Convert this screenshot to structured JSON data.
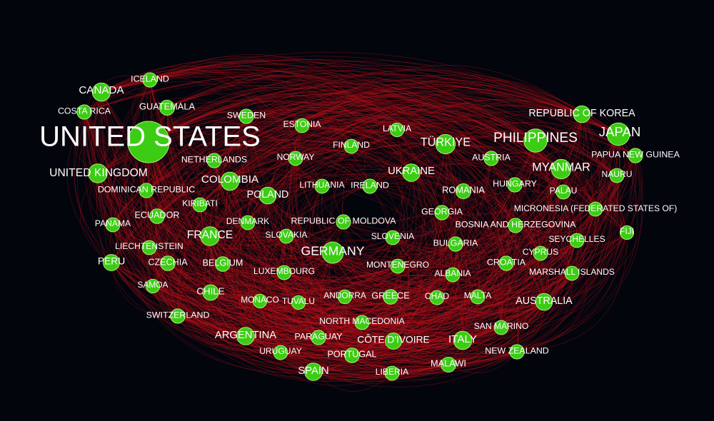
{
  "colors": {
    "background": "#03050d",
    "edge": "#c8101a",
    "node_fill": "#3ccc14",
    "node_stroke": "#a6f07c",
    "label": "#ffffff"
  },
  "nodes": [
    {
      "label": "UNITED STATES",
      "weight": 1.0
    },
    {
      "label": "JAPAN",
      "weight": 0.4
    },
    {
      "label": "PHILIPPINES",
      "weight": 0.42
    },
    {
      "label": "GERMANY",
      "weight": 0.36
    },
    {
      "label": "UNITED KINGDOM",
      "weight": 0.28
    },
    {
      "label": "CANADA",
      "weight": 0.26
    },
    {
      "label": "REPUBLIC OF KOREA",
      "weight": 0.22
    },
    {
      "label": "TÜRKIYE",
      "weight": 0.3
    },
    {
      "label": "MYANMAR",
      "weight": 0.3
    },
    {
      "label": "UKRAINE",
      "weight": 0.24
    },
    {
      "label": "COLOMBIA",
      "weight": 0.26
    },
    {
      "label": "POLAND",
      "weight": 0.22
    },
    {
      "label": "FRANCE",
      "weight": 0.28
    },
    {
      "label": "AUSTRALIA",
      "weight": 0.22
    },
    {
      "label": "ITALY",
      "weight": 0.26
    },
    {
      "label": "SPAIN",
      "weight": 0.24
    },
    {
      "label": "ARGENTINA",
      "weight": 0.24
    },
    {
      "label": "PERU",
      "weight": 0.2
    },
    {
      "label": "CHILE",
      "weight": 0.18
    },
    {
      "label": "CÔTE D'IVOIRE",
      "weight": 0.2
    },
    {
      "label": "MALAWI",
      "weight": 0.16
    },
    {
      "label": "ICELAND",
      "weight": 0.14
    },
    {
      "label": "GUATEMALA",
      "weight": 0.16
    },
    {
      "label": "COSTA RICA",
      "weight": 0.14
    },
    {
      "label": "SWEDEN",
      "weight": 0.14
    },
    {
      "label": "ESTONIA",
      "weight": 0.13
    },
    {
      "label": "LATVIA",
      "weight": 0.12
    },
    {
      "label": "FINLAND",
      "weight": 0.13
    },
    {
      "label": "NORWAY",
      "weight": 0.13
    },
    {
      "label": "NETHERLANDS",
      "weight": 0.14
    },
    {
      "label": "DOMINICAN REPUBLIC",
      "weight": 0.14
    },
    {
      "label": "KIRIBATI",
      "weight": 0.13
    },
    {
      "label": "ECUADOR",
      "weight": 0.15
    },
    {
      "label": "PANAMA",
      "weight": 0.13
    },
    {
      "label": "LIECHTENSTEIN",
      "weight": 0.13
    },
    {
      "label": "CZECHIA",
      "weight": 0.15
    },
    {
      "label": "SAMOA",
      "weight": 0.12
    },
    {
      "label": "SWITZERLAND",
      "weight": 0.14
    },
    {
      "label": "LITHUANIA",
      "weight": 0.13
    },
    {
      "label": "IRELAND",
      "weight": 0.14
    },
    {
      "label": "DENMARK",
      "weight": 0.13
    },
    {
      "label": "REPUBLIC OF MOLDOVA",
      "weight": 0.14
    },
    {
      "label": "SLOVAKIA",
      "weight": 0.13
    },
    {
      "label": "SLOVENIA",
      "weight": 0.13
    },
    {
      "label": "BELGIUM",
      "weight": 0.15
    },
    {
      "label": "LUXEMBOURG",
      "weight": 0.13
    },
    {
      "label": "MONTENEGRO",
      "weight": 0.13
    },
    {
      "label": "MONACO",
      "weight": 0.12
    },
    {
      "label": "TUVALU",
      "weight": 0.12
    },
    {
      "label": "ANDORRA",
      "weight": 0.12
    },
    {
      "label": "GREECE",
      "weight": 0.15
    },
    {
      "label": "NORTH MACEDONIA",
      "weight": 0.13
    },
    {
      "label": "PARAGUAY",
      "weight": 0.14
    },
    {
      "label": "URUGUAY",
      "weight": 0.13
    },
    {
      "label": "PORTUGAL",
      "weight": 0.15
    },
    {
      "label": "LIBERIA",
      "weight": 0.13
    },
    {
      "label": "AUSTRIA",
      "weight": 0.14
    },
    {
      "label": "ROMANIA",
      "weight": 0.16
    },
    {
      "label": "HUNGARY",
      "weight": 0.14
    },
    {
      "label": "GEORGIA",
      "weight": 0.14
    },
    {
      "label": "BOSNIA AND HERZEGOVINA",
      "weight": 0.14
    },
    {
      "label": "BULGARIA",
      "weight": 0.14
    },
    {
      "label": "ALBANIA",
      "weight": 0.13
    },
    {
      "label": "CROATIA",
      "weight": 0.14
    },
    {
      "label": "CHAD",
      "weight": 0.13
    },
    {
      "label": "MALTA",
      "weight": 0.13
    },
    {
      "label": "SAN MARINO",
      "weight": 0.13
    },
    {
      "label": "NEW ZEALAND",
      "weight": 0.14
    },
    {
      "label": "CYPRUS",
      "weight": 0.13
    },
    {
      "label": "MARSHALL ISLANDS",
      "weight": 0.13
    },
    {
      "label": "SEYCHELLES",
      "weight": 0.13
    },
    {
      "label": "FIJI",
      "weight": 0.12
    },
    {
      "label": "MICRONESIA (FEDERATED STATES OF)",
      "weight": 0.13
    },
    {
      "label": "PALAU",
      "weight": 0.13
    },
    {
      "label": "NAURU",
      "weight": 0.13
    },
    {
      "label": "PAPUA NEW GUINEA",
      "weight": 0.14
    }
  ]
}
